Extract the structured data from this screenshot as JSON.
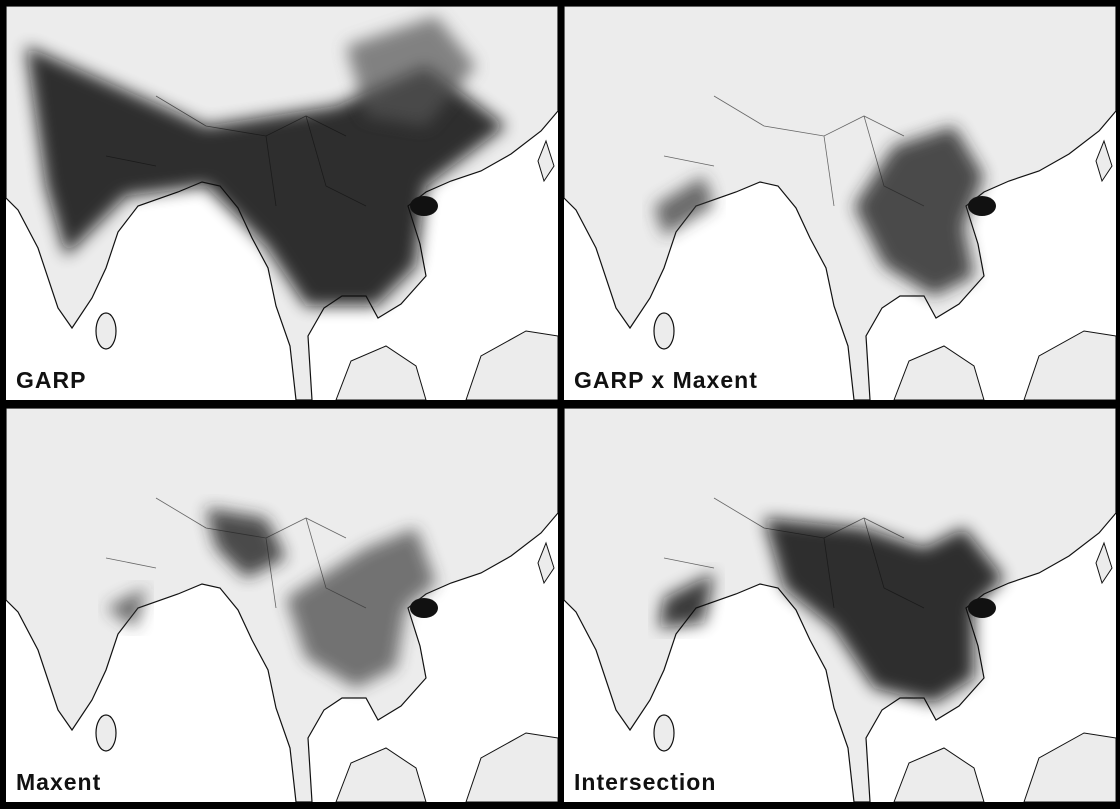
{
  "panels": [
    {
      "label": "GARP"
    },
    {
      "label": "GARP x Maxent"
    },
    {
      "label": "Maxent"
    },
    {
      "label": "Intersection"
    }
  ]
}
